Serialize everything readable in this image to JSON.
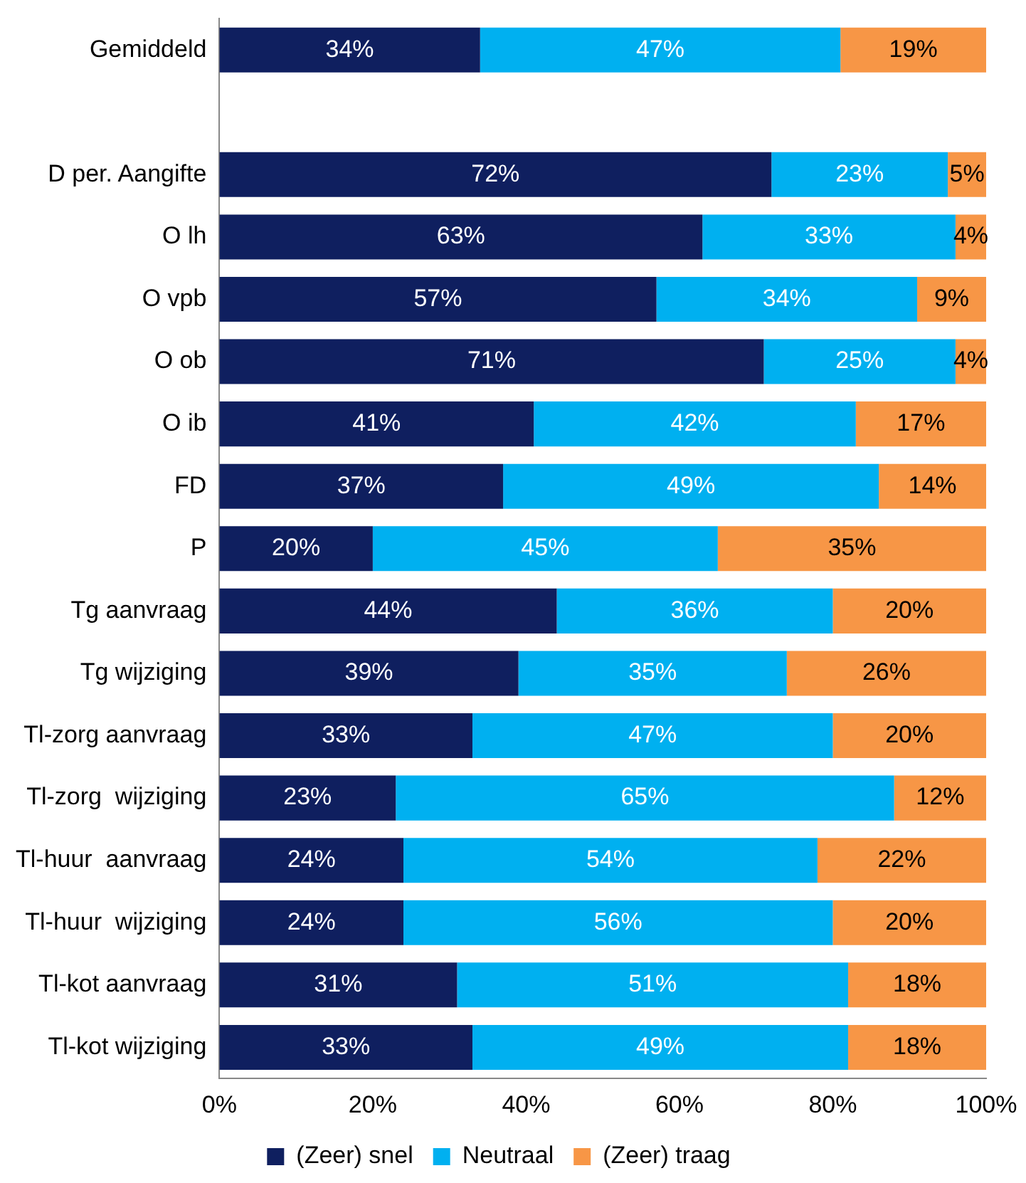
{
  "chart_data": {
    "type": "bar",
    "orientation": "horizontal",
    "stacked": true,
    "categories": [
      "Gemiddeld",
      null,
      "D per. Aangifte",
      "O lh",
      "O vpb",
      "O ob",
      "O ib",
      "FD",
      "P",
      "Tg aanvraag",
      "Tg wijziging",
      "Tl-zorg aanvraag",
      "Tl-zorg  wijziging",
      "Tl-huur  aanvraag",
      "Tl-huur  wijziging",
      "Tl-kot aanvraag",
      "Tl-kot wijziging"
    ],
    "series": [
      {
        "name": "(Zeer) snel",
        "color": "#0f1f5f",
        "values": [
          34,
          null,
          72,
          63,
          57,
          71,
          41,
          37,
          20,
          44,
          39,
          33,
          23,
          24,
          24,
          31,
          33
        ],
        "value_labels": [
          "34%",
          null,
          "72%",
          "63%",
          "57%",
          "71%",
          "41%",
          "37%",
          "20%",
          "44%",
          "39%",
          "33%",
          "23%",
          "24%",
          "24%",
          "31%",
          "33%"
        ]
      },
      {
        "name": "Neutraal",
        "color": "#00b0f0",
        "values": [
          47,
          null,
          23,
          33,
          34,
          25,
          42,
          49,
          45,
          36,
          35,
          47,
          65,
          54,
          56,
          51,
          49
        ],
        "value_labels": [
          "47%",
          null,
          "23%",
          "33%",
          "34%",
          "25%",
          "42%",
          "49%",
          "45%",
          "36%",
          "35%",
          "47%",
          "65%",
          "54%",
          "56%",
          "51%",
          "49%"
        ]
      },
      {
        "name": "(Zeer) traag",
        "color": "#f79646",
        "values": [
          19,
          null,
          5,
          4,
          9,
          4,
          17,
          14,
          35,
          20,
          26,
          20,
          12,
          22,
          20,
          18,
          18
        ],
        "value_labels": [
          "19%",
          null,
          "5%",
          "4%",
          "9%",
          "4%",
          "17%",
          "14%",
          "35%",
          "20%",
          "26%",
          "20%",
          "12%",
          "22%",
          "20%",
          "18%",
          "18%"
        ]
      }
    ],
    "xlim": [
      0,
      100
    ],
    "xticks": [
      {
        "value": 0,
        "label": "0%"
      },
      {
        "value": 20,
        "label": "20%"
      },
      {
        "value": 40,
        "label": "40%"
      },
      {
        "value": 60,
        "label": "60%"
      },
      {
        "value": 80,
        "label": "80%"
      },
      {
        "value": 100,
        "label": "100%"
      }
    ],
    "grid": false,
    "legend": "bottom"
  }
}
